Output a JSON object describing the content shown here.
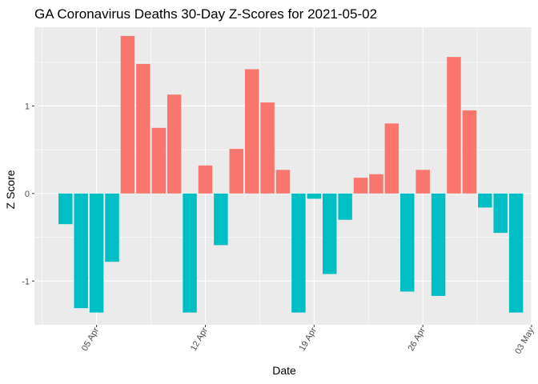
{
  "chart_data": {
    "type": "bar",
    "title": "GA Coronavirus Deaths 30-Day Z-Scores for 2021-05-02",
    "xlabel": "Date",
    "ylabel": "Z Score",
    "ylim": [
      -1.5,
      1.9
    ],
    "yticks": [
      -1,
      0,
      1
    ],
    "ytick_labels": [
      "-1",
      "0",
      "1"
    ],
    "xticks": [
      {
        "date": "2021-04-05",
        "label": "05 Apr"
      },
      {
        "date": "2021-04-12",
        "label": "12 Apr"
      },
      {
        "date": "2021-04-19",
        "label": "19 Apr"
      },
      {
        "date": "2021-04-26",
        "label": "26 Apr"
      },
      {
        "date": "2021-05-03",
        "label": "03 May"
      }
    ],
    "x_range": [
      "2021-04-01",
      "2021-05-03"
    ],
    "colors": {
      "positive": "#F8766D",
      "negative": "#00BFC4",
      "panel": "#EBEBEB",
      "grid": "#FFFFFF"
    },
    "grid": true,
    "legend": "none",
    "bars": [
      {
        "date": "2021-04-03",
        "z": -0.35
      },
      {
        "date": "2021-04-04",
        "z": -1.31
      },
      {
        "date": "2021-04-05",
        "z": -1.36
      },
      {
        "date": "2021-04-06",
        "z": -0.78
      },
      {
        "date": "2021-04-07",
        "z": 1.8
      },
      {
        "date": "2021-04-08",
        "z": 1.48
      },
      {
        "date": "2021-04-09",
        "z": 0.75
      },
      {
        "date": "2021-04-10",
        "z": 1.13
      },
      {
        "date": "2021-04-11",
        "z": -1.36
      },
      {
        "date": "2021-04-12",
        "z": 0.32
      },
      {
        "date": "2021-04-13",
        "z": -0.59
      },
      {
        "date": "2021-04-14",
        "z": 0.51
      },
      {
        "date": "2021-04-15",
        "z": 1.42
      },
      {
        "date": "2021-04-16",
        "z": 1.04
      },
      {
        "date": "2021-04-17",
        "z": 0.27
      },
      {
        "date": "2021-04-18",
        "z": -1.36
      },
      {
        "date": "2021-04-19",
        "z": -0.06
      },
      {
        "date": "2021-04-20",
        "z": -0.92
      },
      {
        "date": "2021-04-21",
        "z": -0.3
      },
      {
        "date": "2021-04-22",
        "z": 0.18
      },
      {
        "date": "2021-04-23",
        "z": 0.22
      },
      {
        "date": "2021-04-24",
        "z": 0.8
      },
      {
        "date": "2021-04-25",
        "z": -1.12
      },
      {
        "date": "2021-04-26",
        "z": 0.27
      },
      {
        "date": "2021-04-27",
        "z": -1.17
      },
      {
        "date": "2021-04-28",
        "z": 1.56
      },
      {
        "date": "2021-04-29",
        "z": 0.95
      },
      {
        "date": "2021-04-30",
        "z": -0.16
      },
      {
        "date": "2021-05-01",
        "z": -0.45
      },
      {
        "date": "2021-05-02",
        "z": -1.36
      }
    ]
  }
}
